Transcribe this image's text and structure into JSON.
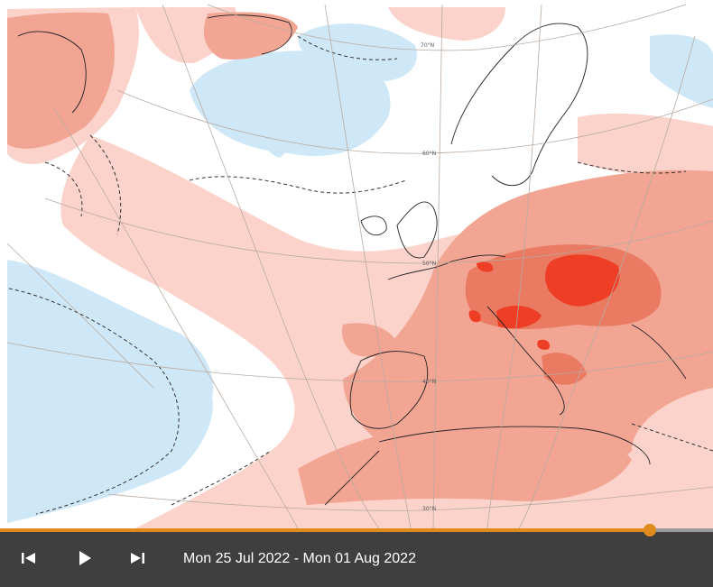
{
  "map": {
    "lat_labels": [
      "70°N",
      "60°N",
      "50°N",
      "40°N",
      "30°N"
    ],
    "colors": {
      "ocean_cool": "#cfe8f8",
      "warm_light": "#fbd3cb",
      "warm_medium": "#f2a593",
      "warm_strong": "#ea7a62",
      "hot": "#ee3f26",
      "background": "#ffffff"
    }
  },
  "player": {
    "progress": 0.912,
    "date_range": "Mon 25 Jul 2022 - Mon 01 Aug 2022",
    "accent": "#e08a1e",
    "controls": [
      {
        "name": "skip-back",
        "icon": "skip-to-start-icon"
      },
      {
        "name": "play",
        "icon": "play-icon"
      },
      {
        "name": "skip-forward",
        "icon": "skip-to-end-icon"
      }
    ]
  }
}
